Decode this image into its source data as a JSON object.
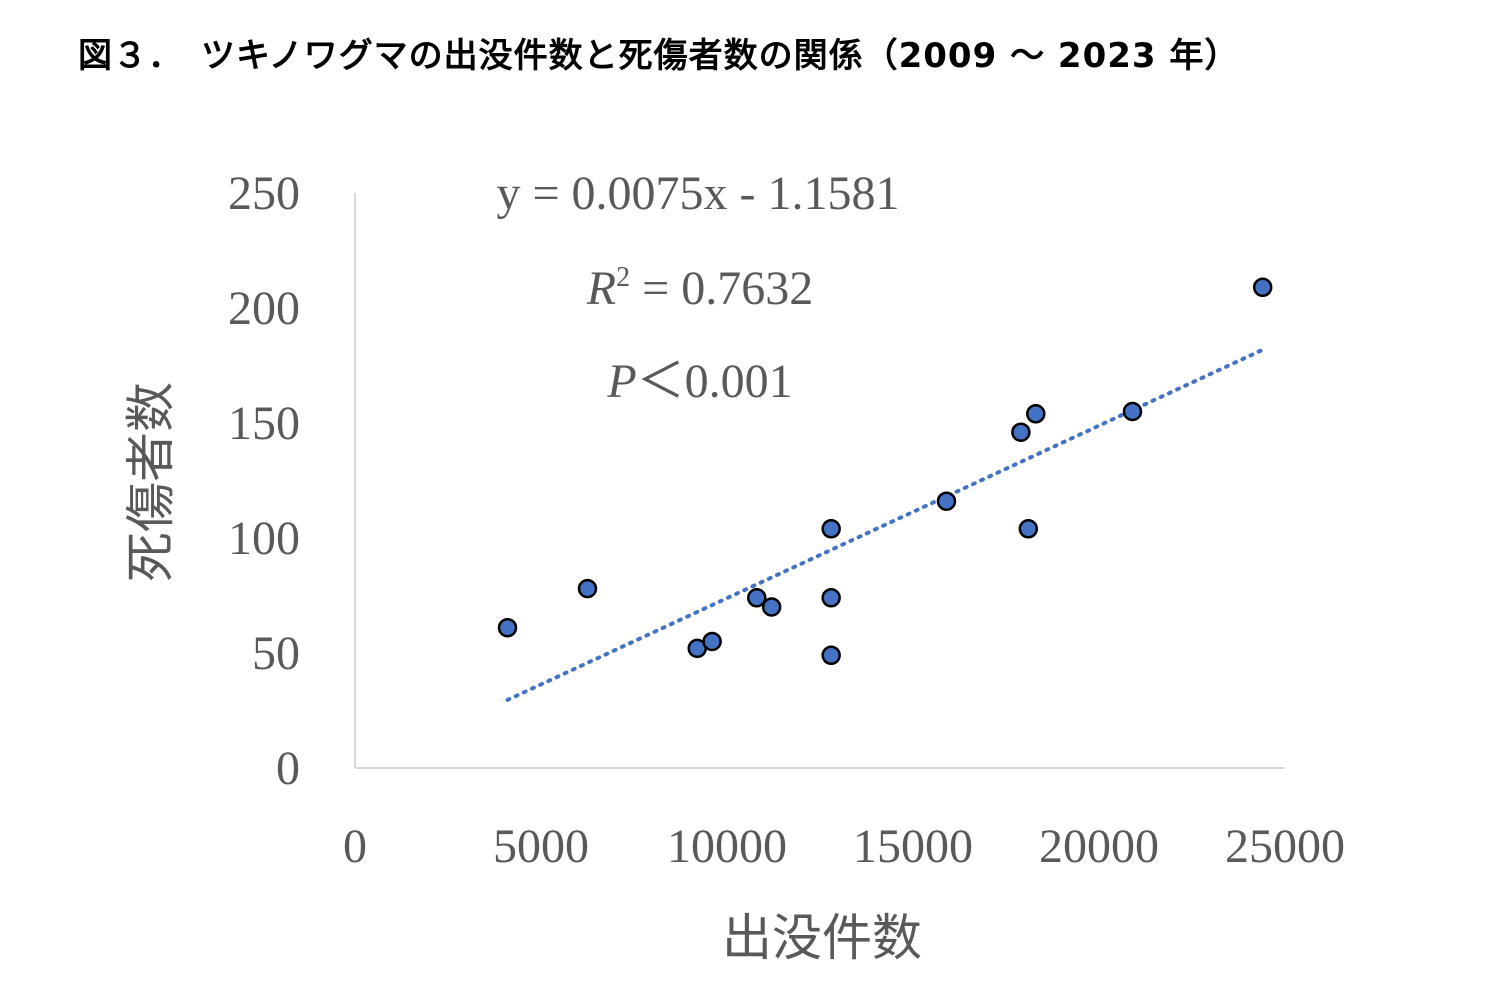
{
  "title": "図３．　ツキノワグマの出没件数と死傷者数の関係（2009 ～ 2023 年）",
  "chart_data": {
    "type": "scatter",
    "xlabel": "出没件数",
    "ylabel": "死傷者数",
    "xlim": [
      0,
      25000
    ],
    "ylim": [
      0,
      250
    ],
    "x_ticks": [
      "0",
      "5000",
      "10000",
      "15000",
      "20000",
      "25000"
    ],
    "y_ticks": [
      "0",
      "50",
      "100",
      "150",
      "200",
      "250"
    ],
    "grid": false,
    "series": [
      {
        "points": [
          {
            "x": 4100,
            "y": 61
          },
          {
            "x": 6250,
            "y": 78
          },
          {
            "x": 9200,
            "y": 52
          },
          {
            "x": 9600,
            "y": 55
          },
          {
            "x": 10800,
            "y": 74
          },
          {
            "x": 11200,
            "y": 70
          },
          {
            "x": 12800,
            "y": 104
          },
          {
            "x": 12800,
            "y": 74
          },
          {
            "x": 12800,
            "y": 49
          },
          {
            "x": 15900,
            "y": 116
          },
          {
            "x": 17900,
            "y": 146
          },
          {
            "x": 18100,
            "y": 104
          },
          {
            "x": 18300,
            "y": 154
          },
          {
            "x": 20900,
            "y": 155
          },
          {
            "x": 24400,
            "y": 209
          }
        ],
        "color": "#4472c4"
      }
    ],
    "trendline": {
      "type": "linear",
      "x_range": [
        4100,
        24400
      ],
      "slope": 0.0075,
      "intercept": -1.1581,
      "color": "#4472c4",
      "style": "dotted"
    },
    "annotations": {
      "equation": "y = 0.0075x - 1.1581",
      "r2_label": "R",
      "r2_sup": "2",
      "r2_value": " = 0.7632",
      "p_label": "P",
      "p_value": "＜0.001"
    }
  }
}
